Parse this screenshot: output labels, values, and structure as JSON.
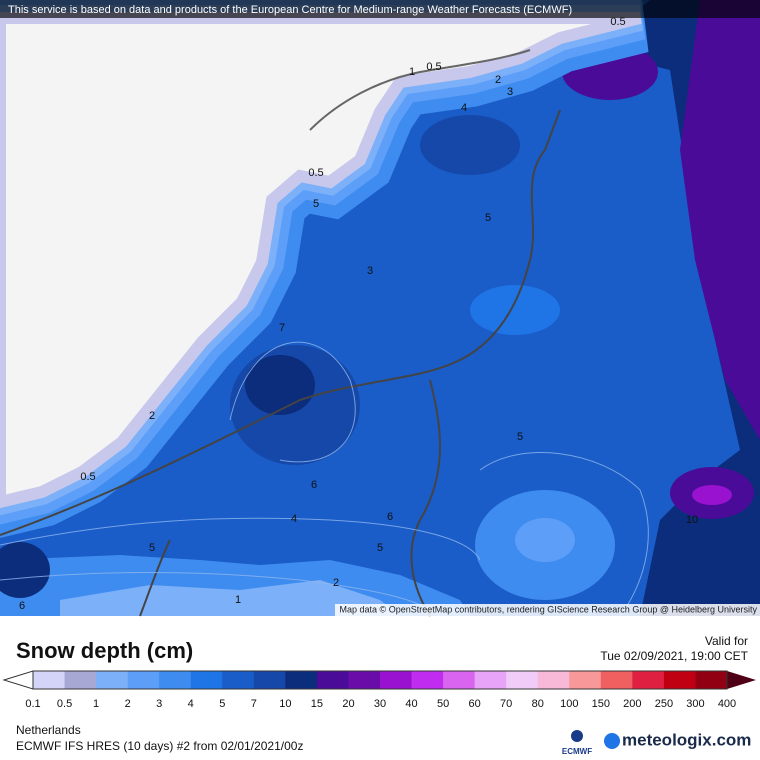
{
  "header": {
    "attribution": "This service is based on data and products of the European Centre for Medium-range Weather Forecasts (ECMWF)"
  },
  "map": {
    "credit": "Map data © OpenStreetMap contributors, rendering GIScience Research Group @ Heidelberg University",
    "contour_labels": [
      0.5,
      1,
      0.5,
      2,
      3,
      4,
      0.5,
      5,
      5,
      3,
      7,
      2,
      0.5,
      6,
      5,
      4,
      6,
      5,
      5,
      2,
      1,
      10,
      6
    ]
  },
  "legend": {
    "title": "Snow depth (cm)",
    "valid_label": "Valid for",
    "valid_time": "Tue 02/09/2021, 19:00 CET",
    "levels": [
      0.1,
      0.5,
      1,
      2,
      3,
      4,
      5,
      7,
      10,
      15,
      20,
      30,
      40,
      50,
      60,
      70,
      80,
      100,
      150,
      200,
      250,
      300,
      400
    ],
    "colors": [
      "#d4d4f8",
      "#a8a8d4",
      "#7cb0f8",
      "#5c9ef8",
      "#3e8cf0",
      "#1f74e6",
      "#1a5cc8",
      "#1548a8",
      "#0c2c7c",
      "#4a0c98",
      "#6a0ca8",
      "#9812d0",
      "#c02cf0",
      "#d864f0",
      "#e8a4f8",
      "#f2ccf8",
      "#f8b8d8",
      "#f89898",
      "#f06060",
      "#e02040",
      "#c00012",
      "#900012"
    ],
    "over_color": "#500014"
  },
  "footer": {
    "region": "Netherlands",
    "model": "ECMWF IFS HRES (10 days) #2 from  02/01/2021/00z",
    "ecmwf_logo": "ECMWF",
    "brand": "meteologix.com"
  }
}
